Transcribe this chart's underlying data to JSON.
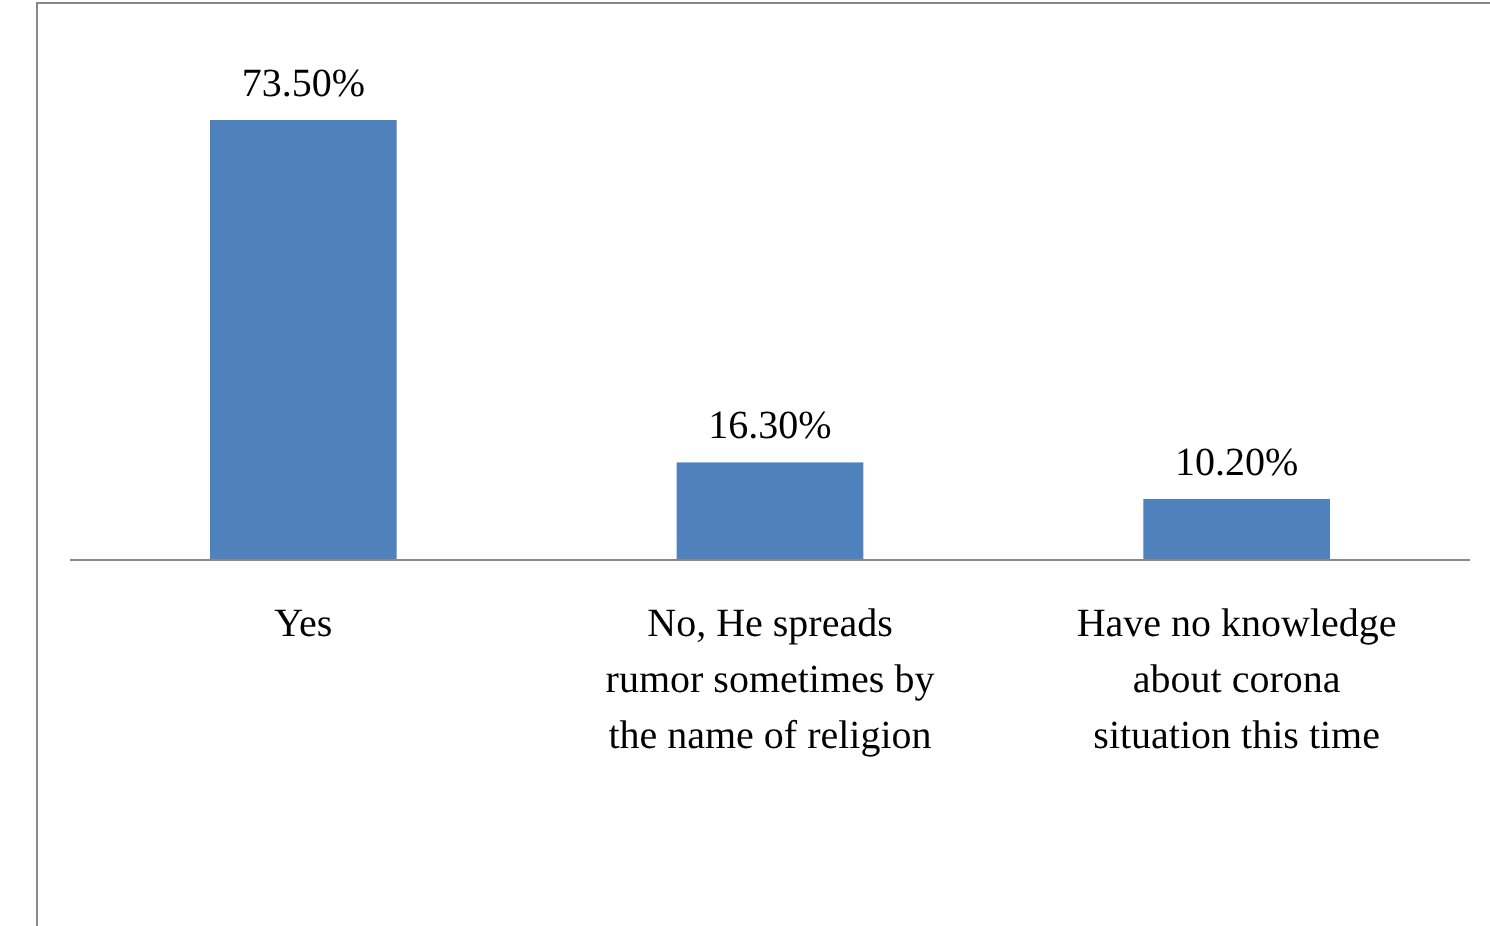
{
  "chart_data": {
    "type": "bar",
    "categories": [
      "Yes",
      "No, He spreads\nrumor sometimes by\nthe name of religion",
      "Have no knowledge\nabout corona\nsituation this time"
    ],
    "values": [
      73.5,
      16.3,
      10.2
    ],
    "value_labels": [
      "73.50%",
      "16.30%",
      "10.20%"
    ],
    "color": "#4f81bd"
  }
}
